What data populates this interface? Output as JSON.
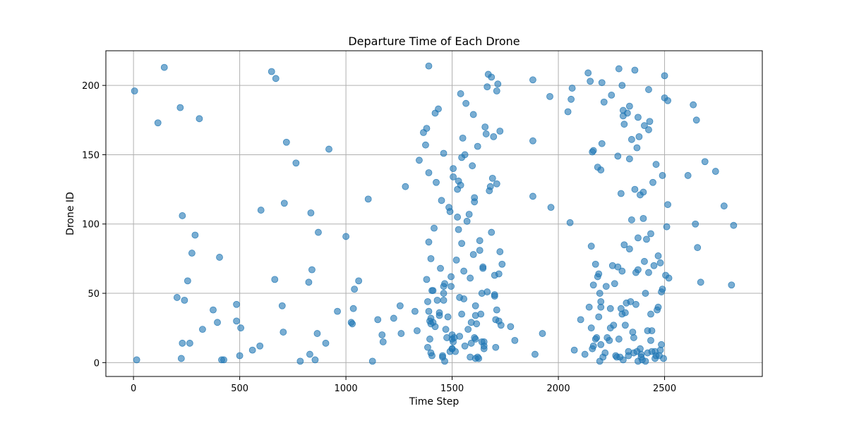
{
  "chart_data": {
    "type": "scatter",
    "title": "Departure Time of Each Drone",
    "xlabel": "Time Step",
    "ylabel": "Drone ID",
    "xlim": [
      -130,
      2960
    ],
    "ylim": [
      -10,
      225
    ],
    "xticks": [
      0,
      500,
      1000,
      1500,
      2000,
      2500
    ],
    "yticks": [
      0,
      50,
      100,
      150,
      200
    ],
    "grid": true,
    "marker_color": "#1f77b4",
    "marker_alpha": 0.6,
    "points": [
      [
        5,
        196
      ],
      [
        15,
        2
      ],
      [
        115,
        173
      ],
      [
        145,
        213
      ],
      [
        205,
        47
      ],
      [
        220,
        184
      ],
      [
        225,
        3
      ],
      [
        230,
        14
      ],
      [
        230,
        106
      ],
      [
        240,
        45
      ],
      [
        255,
        59
      ],
      [
        265,
        14
      ],
      [
        275,
        79
      ],
      [
        290,
        92
      ],
      [
        310,
        176
      ],
      [
        325,
        24
      ],
      [
        375,
        38
      ],
      [
        395,
        29
      ],
      [
        405,
        76
      ],
      [
        415,
        2
      ],
      [
        425,
        2
      ],
      [
        485,
        42
      ],
      [
        485,
        30
      ],
      [
        500,
        5
      ],
      [
        505,
        25
      ],
      [
        560,
        9
      ],
      [
        595,
        12
      ],
      [
        600,
        110
      ],
      [
        650,
        210
      ],
      [
        665,
        60
      ],
      [
        670,
        205
      ],
      [
        700,
        41
      ],
      [
        705,
        22
      ],
      [
        710,
        115
      ],
      [
        720,
        159
      ],
      [
        765,
        144
      ],
      [
        785,
        1
      ],
      [
        825,
        58
      ],
      [
        830,
        6
      ],
      [
        835,
        108
      ],
      [
        840,
        67
      ],
      [
        855,
        2
      ],
      [
        865,
        21
      ],
      [
        870,
        94
      ],
      [
        905,
        14
      ],
      [
        920,
        154
      ],
      [
        960,
        37
      ],
      [
        1000,
        91
      ],
      [
        1025,
        29
      ],
      [
        1030,
        28
      ],
      [
        1035,
        39
      ],
      [
        1040,
        53
      ],
      [
        1060,
        59
      ],
      [
        1105,
        118
      ],
      [
        1125,
        1
      ],
      [
        1150,
        31
      ],
      [
        1170,
        20
      ],
      [
        1175,
        15
      ],
      [
        1225,
        32
      ],
      [
        1255,
        41
      ],
      [
        1260,
        21
      ],
      [
        1280,
        127
      ],
      [
        1325,
        37
      ],
      [
        1335,
        23
      ],
      [
        1345,
        146
      ],
      [
        1365,
        166
      ],
      [
        1375,
        157
      ],
      [
        1380,
        169
      ],
      [
        1380,
        60
      ],
      [
        1385,
        11
      ],
      [
        1385,
        44
      ],
      [
        1390,
        214
      ],
      [
        1390,
        137
      ],
      [
        1390,
        87
      ],
      [
        1390,
        37
      ],
      [
        1395,
        30
      ],
      [
        1395,
        17
      ],
      [
        1400,
        28
      ],
      [
        1400,
        32
      ],
      [
        1400,
        75
      ],
      [
        1400,
        7
      ],
      [
        1405,
        52
      ],
      [
        1405,
        5
      ],
      [
        1410,
        52
      ],
      [
        1410,
        29
      ],
      [
        1415,
        97
      ],
      [
        1420,
        180
      ],
      [
        1420,
        26
      ],
      [
        1425,
        130
      ],
      [
        1430,
        45
      ],
      [
        1435,
        183
      ],
      [
        1440,
        36
      ],
      [
        1440,
        34
      ],
      [
        1445,
        68
      ],
      [
        1450,
        117
      ],
      [
        1455,
        5
      ],
      [
        1455,
        4
      ],
      [
        1460,
        151
      ],
      [
        1460,
        55
      ],
      [
        1460,
        50
      ],
      [
        1460,
        45
      ],
      [
        1465,
        1
      ],
      [
        1465,
        57
      ],
      [
        1470,
        24
      ],
      [
        1475,
        18
      ],
      [
        1480,
        33
      ],
      [
        1485,
        112
      ],
      [
        1490,
        109
      ],
      [
        1490,
        8
      ],
      [
        1495,
        55
      ],
      [
        1495,
        62
      ],
      [
        1500,
        10
      ],
      [
        1500,
        17
      ],
      [
        1500,
        20
      ],
      [
        1500,
        10
      ],
      [
        1505,
        134
      ],
      [
        1505,
        140
      ],
      [
        1505,
        15
      ],
      [
        1510,
        18
      ],
      [
        1515,
        8
      ],
      [
        1520,
        74
      ],
      [
        1525,
        105
      ],
      [
        1525,
        125
      ],
      [
        1530,
        96
      ],
      [
        1530,
        131
      ],
      [
        1535,
        47
      ],
      [
        1535,
        19
      ],
      [
        1540,
        194
      ],
      [
        1540,
        128
      ],
      [
        1545,
        148
      ],
      [
        1545,
        86
      ],
      [
        1545,
        35
      ],
      [
        1550,
        162
      ],
      [
        1555,
        46
      ],
      [
        1555,
        66
      ],
      [
        1560,
        150
      ],
      [
        1560,
        12
      ],
      [
        1565,
        187
      ],
      [
        1570,
        102
      ],
      [
        1575,
        24
      ],
      [
        1580,
        107
      ],
      [
        1585,
        4
      ],
      [
        1585,
        61
      ],
      [
        1590,
        29
      ],
      [
        1590,
        14
      ],
      [
        1595,
        142
      ],
      [
        1600,
        78
      ],
      [
        1600,
        179
      ],
      [
        1605,
        116
      ],
      [
        1605,
        119
      ],
      [
        1605,
        18
      ],
      [
        1610,
        34
      ],
      [
        1610,
        17
      ],
      [
        1610,
        3
      ],
      [
        1610,
        41
      ],
      [
        1615,
        28
      ],
      [
        1620,
        156
      ],
      [
        1620,
        4
      ],
      [
        1625,
        3
      ],
      [
        1630,
        88
      ],
      [
        1630,
        81
      ],
      [
        1635,
        35
      ],
      [
        1640,
        15
      ],
      [
        1640,
        50
      ],
      [
        1645,
        68
      ],
      [
        1645,
        69
      ],
      [
        1650,
        12
      ],
      [
        1650,
        15
      ],
      [
        1650,
        10
      ],
      [
        1655,
        170
      ],
      [
        1660,
        165
      ],
      [
        1665,
        51
      ],
      [
        1665,
        199
      ],
      [
        1670,
        208
      ],
      [
        1675,
        124
      ],
      [
        1680,
        127
      ],
      [
        1685,
        206
      ],
      [
        1685,
        94
      ],
      [
        1690,
        133
      ],
      [
        1695,
        163
      ],
      [
        1700,
        48
      ],
      [
        1700,
        63
      ],
      [
        1700,
        49
      ],
      [
        1705,
        11
      ],
      [
        1705,
        31
      ],
      [
        1710,
        38
      ],
      [
        1710,
        196
      ],
      [
        1710,
        129
      ],
      [
        1715,
        201
      ],
      [
        1720,
        64
      ],
      [
        1720,
        30
      ],
      [
        1725,
        80
      ],
      [
        1725,
        167
      ],
      [
        1730,
        27
      ],
      [
        1735,
        71
      ],
      [
        1775,
        26
      ],
      [
        1795,
        16
      ],
      [
        1880,
        204
      ],
      [
        1880,
        160
      ],
      [
        1880,
        120
      ],
      [
        1890,
        6
      ],
      [
        1925,
        21
      ],
      [
        1965,
        112
      ],
      [
        1960,
        192
      ],
      [
        2045,
        181
      ],
      [
        2055,
        101
      ],
      [
        2060,
        190
      ],
      [
        2065,
        198
      ],
      [
        2075,
        9
      ],
      [
        2105,
        31
      ],
      [
        2125,
        6
      ],
      [
        2140,
        209
      ],
      [
        2145,
        40
      ],
      [
        2150,
        203
      ],
      [
        2155,
        25
      ],
      [
        2155,
        84
      ],
      [
        2160,
        10
      ],
      [
        2160,
        152
      ],
      [
        2165,
        153
      ],
      [
        2165,
        56
      ],
      [
        2165,
        12
      ],
      [
        2175,
        71
      ],
      [
        2175,
        17
      ],
      [
        2180,
        18
      ],
      [
        2185,
        62
      ],
      [
        2185,
        141
      ],
      [
        2190,
        33
      ],
      [
        2190,
        64
      ],
      [
        2195,
        50
      ],
      [
        2195,
        1
      ],
      [
        2200,
        13
      ],
      [
        2200,
        139
      ],
      [
        2200,
        40
      ],
      [
        2200,
        44
      ],
      [
        2205,
        158
      ],
      [
        2205,
        202
      ],
      [
        2210,
        4
      ],
      [
        2215,
        188
      ],
      [
        2220,
        7
      ],
      [
        2225,
        55
      ],
      [
        2230,
        18
      ],
      [
        2240,
        16
      ],
      [
        2245,
        25
      ],
      [
        2245,
        39
      ],
      [
        2250,
        193
      ],
      [
        2255,
        70
      ],
      [
        2260,
        27
      ],
      [
        2265,
        57
      ],
      [
        2270,
        5
      ],
      [
        2275,
        4
      ],
      [
        2280,
        69
      ],
      [
        2280,
        149
      ],
      [
        2285,
        17
      ],
      [
        2285,
        212
      ],
      [
        2290,
        4
      ],
      [
        2295,
        122
      ],
      [
        2295,
        39
      ],
      [
        2300,
        200
      ],
      [
        2300,
        35
      ],
      [
        2300,
        66
      ],
      [
        2305,
        2
      ],
      [
        2305,
        182
      ],
      [
        2305,
        178
      ],
      [
        2310,
        85
      ],
      [
        2310,
        172
      ],
      [
        2315,
        27
      ],
      [
        2315,
        36
      ],
      [
        2320,
        43
      ],
      [
        2325,
        180
      ],
      [
        2330,
        5
      ],
      [
        2330,
        8
      ],
      [
        2335,
        147
      ],
      [
        2335,
        185
      ],
      [
        2335,
        82
      ],
      [
        2340,
        44
      ],
      [
        2345,
        103
      ],
      [
        2345,
        161
      ],
      [
        2350,
        22
      ],
      [
        2355,
        7
      ],
      [
        2355,
        18
      ],
      [
        2360,
        211
      ],
      [
        2360,
        125
      ],
      [
        2365,
        65
      ],
      [
        2365,
        42
      ],
      [
        2370,
        8
      ],
      [
        2370,
        155
      ],
      [
        2375,
        1
      ],
      [
        2375,
        67
      ],
      [
        2375,
        90
      ],
      [
        2375,
        177
      ],
      [
        2380,
        163
      ],
      [
        2385,
        10
      ],
      [
        2385,
        121
      ],
      [
        2390,
        4
      ],
      [
        2390,
        6
      ],
      [
        2395,
        2
      ],
      [
        2400,
        123
      ],
      [
        2400,
        104
      ],
      [
        2405,
        73
      ],
      [
        2405,
        171
      ],
      [
        2410,
        50
      ],
      [
        2410,
        1
      ],
      [
        2415,
        89
      ],
      [
        2420,
        7
      ],
      [
        2420,
        23
      ],
      [
        2425,
        168
      ],
      [
        2425,
        65
      ],
      [
        2425,
        197
      ],
      [
        2430,
        174
      ],
      [
        2435,
        16
      ],
      [
        2435,
        93
      ],
      [
        2435,
        35
      ],
      [
        2440,
        8
      ],
      [
        2440,
        23
      ],
      [
        2445,
        130
      ],
      [
        2450,
        70
      ],
      [
        2455,
        3
      ],
      [
        2455,
        8
      ],
      [
        2460,
        143
      ],
      [
        2460,
        5
      ],
      [
        2465,
        38
      ],
      [
        2470,
        77
      ],
      [
        2470,
        40
      ],
      [
        2475,
        5
      ],
      [
        2480,
        72
      ],
      [
        2480,
        9
      ],
      [
        2485,
        13
      ],
      [
        2485,
        51
      ],
      [
        2490,
        53
      ],
      [
        2490,
        135
      ],
      [
        2495,
        3
      ],
      [
        2500,
        191
      ],
      [
        2500,
        207
      ],
      [
        2505,
        63
      ],
      [
        2510,
        98
      ],
      [
        2515,
        114
      ],
      [
        2515,
        189
      ],
      [
        2520,
        61
      ],
      [
        2610,
        135
      ],
      [
        2635,
        186
      ],
      [
        2645,
        100
      ],
      [
        2650,
        175
      ],
      [
        2655,
        83
      ],
      [
        2670,
        58
      ],
      [
        2690,
        145
      ],
      [
        2740,
        138
      ],
      [
        2780,
        113
      ],
      [
        2815,
        56
      ],
      [
        2825,
        99
      ]
    ]
  }
}
